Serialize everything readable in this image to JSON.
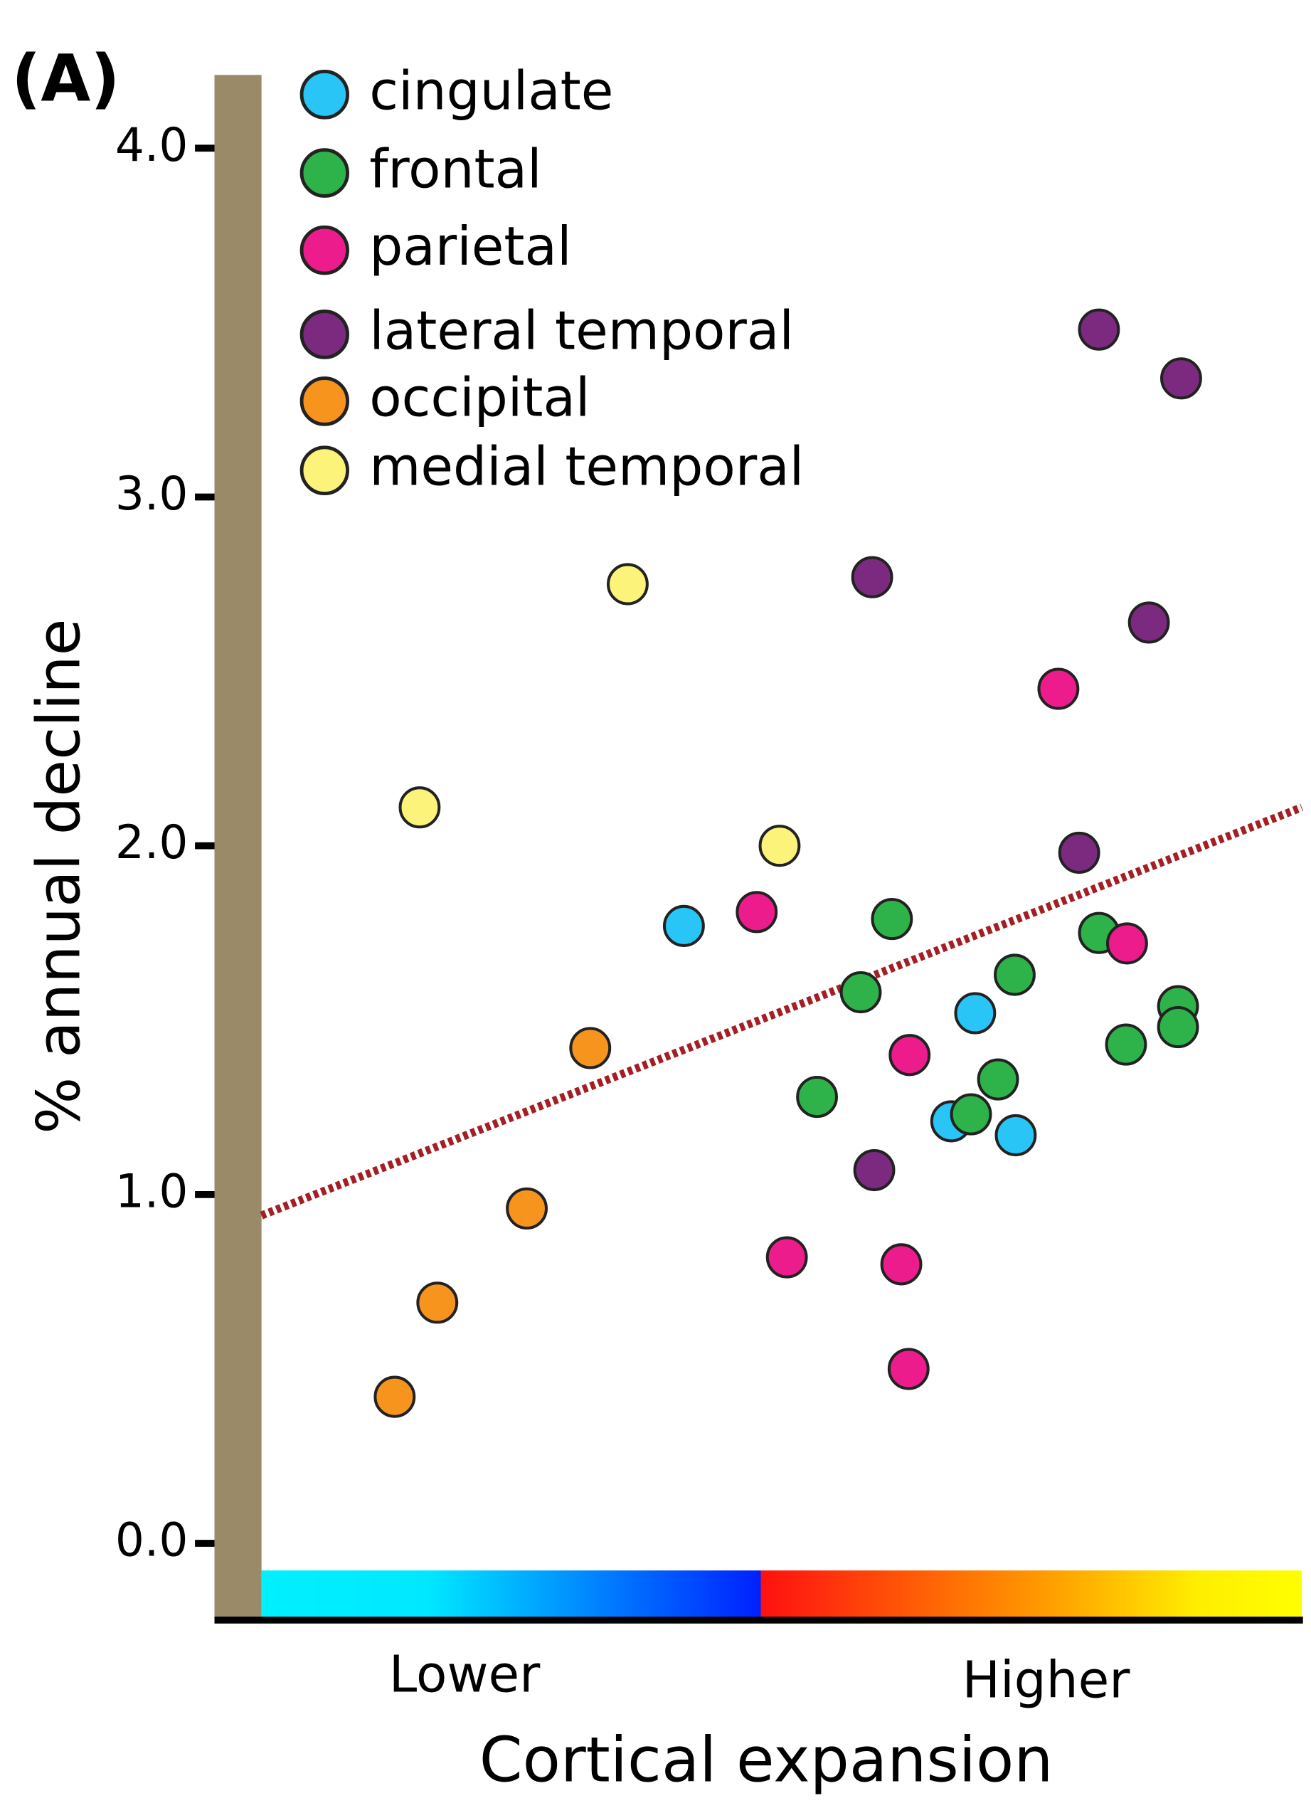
{
  "chart_data": {
    "type": "scatter",
    "panel_label": "(A)",
    "ylabel": "% annual decline",
    "xlabel": "Cortical expansion",
    "x_end_labels": [
      "Lower",
      "Higher"
    ],
    "xlim": [
      0,
      100
    ],
    "ylim": [
      -0.22,
      4.21
    ],
    "yticks": [
      {
        "value": 0,
        "label": "0.0"
      },
      {
        "value": 1,
        "label": "1.0"
      },
      {
        "value": 2,
        "label": "2.0"
      },
      {
        "value": 3,
        "label": "3.0"
      },
      {
        "value": 4,
        "label": "4.0"
      }
    ],
    "legend": "upper left",
    "series": [
      {
        "name": "cingulate",
        "color": "#29c5f6",
        "x": [
          40.6,
          68.6,
          66.3,
          72.5
        ],
        "values": [
          1.77,
          1.52,
          1.21,
          1.17
        ]
      },
      {
        "name": "frontal",
        "color": "#2db34a",
        "x": [
          60.6,
          57.6,
          53.4,
          72.4,
          70.8,
          68.2,
          80.5,
          83.1,
          88.1,
          88.1
        ],
        "values": [
          1.79,
          1.58,
          1.28,
          1.63,
          1.33,
          1.23,
          1.75,
          1.43,
          1.54,
          1.48
        ]
      },
      {
        "name": "parietal",
        "color": "#ec1c8c",
        "x": [
          47.6,
          50.5,
          61.5,
          62.2,
          62.3,
          76.6,
          83.2
        ],
        "values": [
          1.81,
          0.82,
          0.8,
          0.5,
          1.4,
          2.45,
          1.72
        ]
      },
      {
        "name": "lateral temporal",
        "color": "#7b2a7f",
        "x": [
          80.5,
          88.4,
          58.7,
          85.3,
          78.6,
          58.9
        ],
        "values": [
          3.48,
          3.34,
          2.77,
          2.64,
          1.98,
          1.07
        ]
      },
      {
        "name": "occipital",
        "color": "#f7941d",
        "x": [
          12.8,
          16.9,
          25.5,
          31.6
        ],
        "values": [
          0.42,
          0.69,
          0.96,
          1.42
        ]
      },
      {
        "name": "medial temporal",
        "color": "#fbf37a",
        "x": [
          35.2,
          15.2,
          49.8
        ],
        "values": [
          2.75,
          2.11,
          2.0
        ]
      }
    ],
    "trendline": {
      "x": [
        0,
        100
      ],
      "values": [
        0.94,
        2.11
      ],
      "color": "#a31f24"
    }
  }
}
